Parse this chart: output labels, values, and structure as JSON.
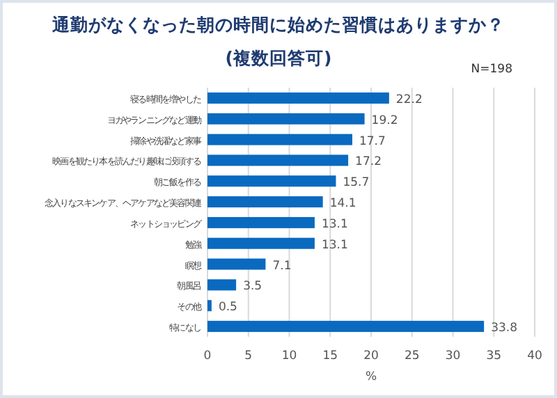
{
  "chart_data": {
    "type": "bar",
    "orientation": "horizontal",
    "title": "通勤がなくなった朝の時間に始めた習慣はありますか？",
    "subtitle": "(複数回答可)",
    "annotations": [
      "N=198"
    ],
    "xlabel": "%",
    "categories": [
      "寝る時間を増やした",
      "ヨガやランニングなど運動",
      "掃除や洗濯など家事",
      "映画を観たり本を読んだり趣味に没頭する",
      "朝ご飯を作る",
      "念入りなスキンケア、ヘアケアなど美容関連",
      "ネットショッピング",
      "勉強",
      "瞑想",
      "朝風呂",
      "その他",
      "特になし"
    ],
    "values": [
      22.2,
      19.2,
      17.7,
      17.2,
      15.7,
      14.1,
      13.1,
      13.1,
      7.1,
      3.5,
      0.5,
      33.8
    ],
    "color": "#0a6ac0",
    "xlim": [
      0,
      40
    ],
    "xticks": [
      0,
      5,
      10,
      15,
      20,
      25,
      30,
      35,
      40
    ],
    "grid": "x",
    "data_labels": true
  }
}
